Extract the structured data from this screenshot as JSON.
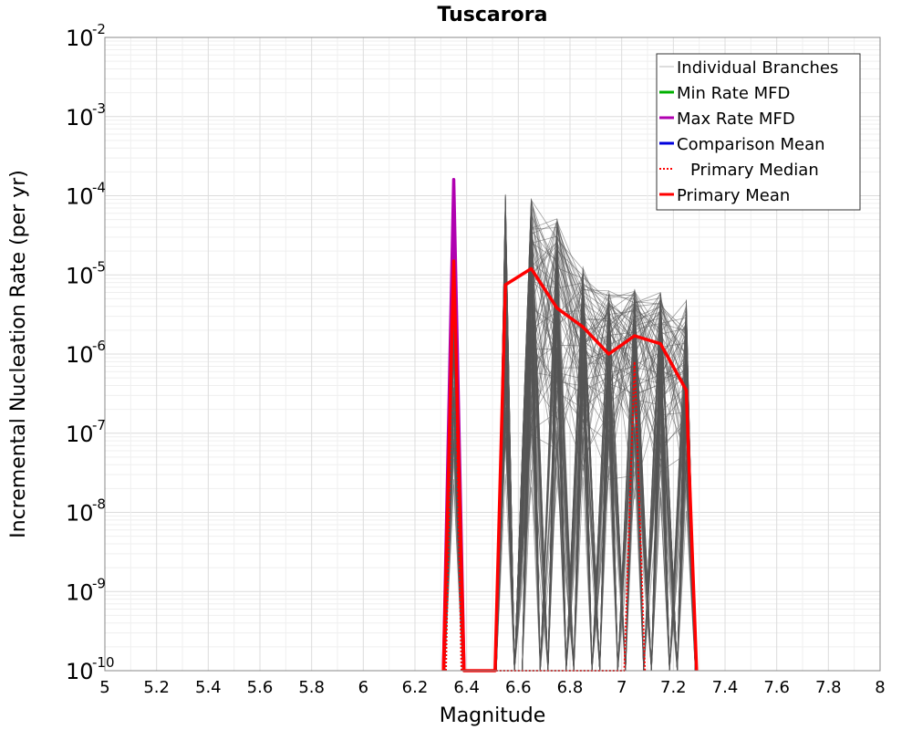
{
  "chart_data": {
    "type": "line",
    "title": "Tuscarora",
    "xlabel": "Magnitude",
    "ylabel": "Incremental Nucleation Rate (per yr)",
    "xlim": [
      5,
      8
    ],
    "ylim": [
      1e-10,
      0.01
    ],
    "y_scale": "log",
    "grid": true,
    "legend_position": "top-right",
    "x_ticks": [
      5,
      5.2,
      5.4,
      5.6,
      5.8,
      6,
      6.2,
      6.4,
      6.6,
      6.8,
      7,
      7.2,
      7.4,
      7.6,
      7.8,
      8
    ],
    "x_tick_labels": [
      "5",
      "5.2",
      "5.4",
      "5.6",
      "5.8",
      "6",
      "6.2",
      "6.4",
      "6.6",
      "6.8",
      "7",
      "7.2",
      "7.4",
      "7.6",
      "7.8",
      "8"
    ],
    "y_ticks": [
      {
        "value": 0.01,
        "base": "10",
        "exp": "-2"
      },
      {
        "value": 0.001,
        "base": "10",
        "exp": "-3"
      },
      {
        "value": 0.0001,
        "base": "10",
        "exp": "-4"
      },
      {
        "value": 1e-05,
        "base": "10",
        "exp": "-5"
      },
      {
        "value": 1e-06,
        "base": "10",
        "exp": "-6"
      },
      {
        "value": 1e-07,
        "base": "10",
        "exp": "-7"
      },
      {
        "value": 1e-08,
        "base": "10",
        "exp": "-8"
      },
      {
        "value": 1e-09,
        "base": "10",
        "exp": "-9"
      },
      {
        "value": 1e-10,
        "base": "10",
        "exp": "-10"
      }
    ],
    "branch_bins": [
      6.35,
      6.55,
      6.65,
      6.75,
      6.85,
      6.95,
      7.05,
      7.15,
      7.25
    ],
    "branch_peaks": [
      {
        "x": 6.35,
        "max": 0.00016,
        "min": 1e-08
      },
      {
        "x": 6.55,
        "max": 0.00011,
        "min": 1e-08
      },
      {
        "x": 6.65,
        "max": 0.0001,
        "min": 1e-08
      },
      {
        "x": 6.75,
        "max": 5.4e-05,
        "min": 1e-08
      },
      {
        "x": 6.85,
        "max": 1.3e-05,
        "min": 1e-08
      },
      {
        "x": 6.95,
        "max": 6.5e-06,
        "min": 1e-08
      },
      {
        "x": 7.05,
        "max": 7e-06,
        "min": 1e-08
      },
      {
        "x": 7.15,
        "max": 6e-06,
        "min": 1e-08
      },
      {
        "x": 7.25,
        "max": 5e-06,
        "min": 1e-08
      }
    ],
    "series": [
      {
        "name": "Individual Branches",
        "color": "#555555",
        "style": "thin"
      },
      {
        "name": "Min Rate MFD",
        "color": "#00b000",
        "style": "solid",
        "x": [],
        "y": []
      },
      {
        "name": "Max Rate MFD",
        "color": "#b000b0",
        "style": "solid",
        "x": [
          6.31,
          6.35,
          6.39
        ],
        "y": [
          1e-10,
          0.00016,
          1e-10
        ]
      },
      {
        "name": "Comparison Mean",
        "color": "#0000dd",
        "style": "solid",
        "x": [],
        "y": []
      },
      {
        "name": "Primary Median",
        "color": "#ff0000",
        "style": "dotted",
        "x": [
          6.32,
          6.35,
          6.38,
          7.01,
          7.05,
          7.09
        ],
        "y": [
          1e-10,
          1.5e-05,
          1e-10,
          1e-10,
          8e-07,
          1e-10
        ]
      },
      {
        "name": "Primary Mean",
        "color": "#ff0000",
        "style": "solid",
        "x": [
          6.31,
          6.35,
          6.39,
          6.51,
          6.55,
          6.65,
          6.75,
          6.85,
          6.95,
          7.05,
          7.15,
          7.25,
          7.29
        ],
        "y": [
          1e-10,
          1.5e-05,
          1e-10,
          1e-10,
          7.5e-06,
          1.2e-05,
          3.8e-06,
          2.2e-06,
          1e-06,
          1.7e-06,
          1.35e-06,
          3.5e-07,
          1e-10
        ]
      }
    ]
  }
}
